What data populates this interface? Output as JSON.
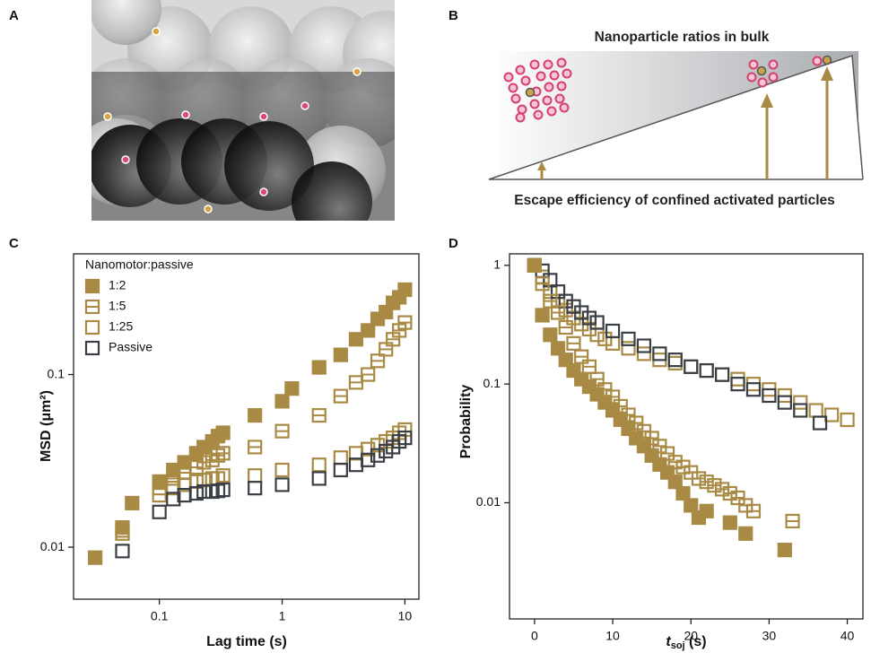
{
  "figure": {
    "panel_labels": [
      "A",
      "B",
      "C",
      "D"
    ],
    "panel_b": {
      "top_text": "Nanoparticle ratios in bulk",
      "bottom_text": "Escape efficiency of confined activated particles"
    }
  },
  "chart_data": [
    {
      "type": "scatter",
      "xlabel": "Lag time (s)",
      "ylabel": "MSD (μm²)",
      "legend_title": "Nanomotor:passive",
      "xscale": "log",
      "yscale": "log",
      "xlim": [
        0.02,
        13
      ],
      "ylim": [
        0.005,
        0.5
      ],
      "xticks": [
        0.1,
        1,
        10
      ],
      "yticks": [
        0.01,
        0.1
      ],
      "legend": "upper left",
      "x": [
        0.03,
        0.05,
        0.06,
        0.1,
        0.13,
        0.16,
        0.2,
        0.23,
        0.27,
        0.3,
        0.33,
        0.6,
        1,
        1.2,
        2,
        3,
        4,
        5,
        6,
        7,
        8,
        9,
        10
      ],
      "series": [
        {
          "name": "1:2",
          "color": "#a88a44",
          "marker": "filled",
          "values": [
            0.0087,
            0.013,
            0.018,
            0.024,
            0.028,
            0.031,
            0.035,
            0.038,
            0.041,
            0.044,
            0.046,
            0.058,
            0.07,
            0.083,
            0.11,
            0.13,
            0.16,
            0.18,
            0.21,
            0.23,
            0.26,
            0.28,
            0.31
          ]
        },
        {
          "name": "1:5",
          "color": "#a88a44",
          "marker": "split",
          "values": [
            null,
            0.012,
            null,
            0.022,
            0.025,
            0.027,
            0.029,
            0.031,
            0.032,
            0.034,
            0.035,
            0.038,
            0.047,
            null,
            0.058,
            0.075,
            0.09,
            0.1,
            0.12,
            0.14,
            0.16,
            0.18,
            0.2
          ]
        },
        {
          "name": "1:25",
          "color": "#a88a44",
          "marker": "open",
          "values": [
            null,
            0.0125,
            null,
            0.02,
            0.022,
            0.023,
            0.024,
            0.0245,
            0.025,
            0.025,
            0.026,
            0.026,
            0.028,
            null,
            0.03,
            0.033,
            0.035,
            0.037,
            0.039,
            0.041,
            0.043,
            0.046,
            0.048
          ]
        },
        {
          "name": "Passive",
          "color": "#3a3f45",
          "marker": "open",
          "values": [
            null,
            0.0095,
            null,
            0.016,
            0.019,
            0.02,
            0.0205,
            0.021,
            0.021,
            0.0212,
            0.0215,
            0.022,
            0.023,
            null,
            0.025,
            0.028,
            0.03,
            0.032,
            0.034,
            0.036,
            0.038,
            0.041,
            0.043
          ]
        }
      ]
    },
    {
      "type": "scatter",
      "xlabel": [
        "t",
        "soj",
        " (s)"
      ],
      "ylabel": "Probability",
      "xscale": "linear",
      "yscale": "log",
      "xlim": [
        -3.2,
        42
      ],
      "ylim": [
        0.00105,
        1.25
      ],
      "xticks": [
        0,
        10,
        20,
        30,
        40
      ],
      "yticks": [
        0.01,
        0.1,
        1
      ],
      "series": [
        {
          "name": "1:25",
          "color": "#a88a44",
          "marker": "open",
          "x": [
            0,
            1,
            2,
            3,
            4,
            5,
            6,
            7,
            8,
            9,
            10,
            12,
            14,
            16,
            18,
            20,
            22,
            24,
            26,
            28,
            30,
            32,
            34,
            36,
            38,
            40
          ],
          "values": [
            1,
            0.8,
            0.6,
            0.5,
            0.42,
            0.36,
            0.32,
            0.29,
            0.26,
            0.24,
            0.22,
            0.2,
            0.18,
            0.16,
            0.15,
            0.14,
            0.13,
            0.12,
            0.11,
            0.1,
            0.09,
            0.08,
            0.07,
            0.06,
            0.055,
            0.05
          ]
        },
        {
          "name": "Passive",
          "color": "#3a3f45",
          "marker": "open",
          "x": [
            0,
            1,
            2,
            3,
            4,
            5,
            6,
            7,
            8,
            10,
            12,
            14,
            16,
            18,
            20,
            22,
            24,
            26,
            28,
            30,
            32,
            34,
            36.5
          ],
          "values": [
            1,
            0.9,
            0.75,
            0.6,
            0.5,
            0.45,
            0.4,
            0.36,
            0.33,
            0.28,
            0.24,
            0.21,
            0.18,
            0.16,
            0.14,
            0.13,
            0.12,
            0.1,
            0.09,
            0.08,
            0.07,
            0.06,
            0.047
          ]
        },
        {
          "name": "1:5",
          "color": "#a88a44",
          "marker": "split",
          "x": [
            0,
            1,
            2,
            3,
            4,
            5,
            6,
            7,
            8,
            9,
            10,
            11,
            12,
            13,
            14,
            15,
            16,
            17,
            18,
            19,
            20,
            21,
            22,
            23,
            24,
            25,
            26,
            27,
            28,
            33
          ],
          "values": [
            1,
            0.7,
            0.5,
            0.4,
            0.3,
            0.22,
            0.17,
            0.14,
            0.11,
            0.09,
            0.078,
            0.065,
            0.055,
            0.047,
            0.04,
            0.035,
            0.03,
            0.026,
            0.022,
            0.02,
            0.018,
            0.016,
            0.015,
            0.014,
            0.013,
            0.012,
            0.011,
            0.0095,
            0.0085,
            0.007
          ]
        },
        {
          "name": "1:2",
          "color": "#a88a44",
          "marker": "filled",
          "x": [
            0,
            1,
            2,
            3,
            4,
            5,
            6,
            7,
            8,
            9,
            10,
            11,
            12,
            13,
            14,
            15,
            16,
            17,
            18,
            19,
            20,
            21,
            22,
            25,
            27,
            32
          ],
          "values": [
            1,
            0.38,
            0.26,
            0.2,
            0.16,
            0.13,
            0.11,
            0.095,
            0.082,
            0.07,
            0.06,
            0.05,
            0.042,
            0.035,
            0.03,
            0.025,
            0.021,
            0.018,
            0.015,
            0.012,
            0.0095,
            0.0075,
            0.0085,
            0.0068,
            0.0055,
            0.004
          ]
        }
      ]
    }
  ]
}
